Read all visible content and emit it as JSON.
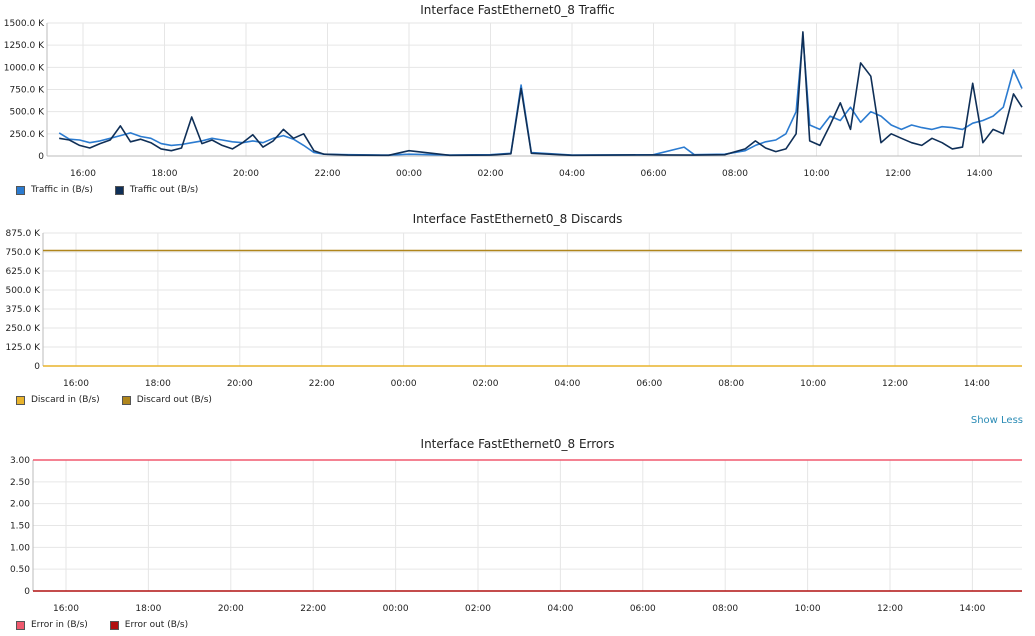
{
  "show_less_label": "Show Less",
  "chart_data": [
    {
      "type": "line",
      "title": "Interface FastEthernet0_8 Traffic",
      "xlabel": "",
      "ylabel": "",
      "x_tick_labels": [
        "16:00",
        "18:00",
        "20:00",
        "22:00",
        "00:00",
        "02:00",
        "04:00",
        "06:00",
        "08:00",
        "10:00",
        "12:00",
        "14:00"
      ],
      "y_tick_labels": [
        "0",
        "250.0 K",
        "500.0 K",
        "750.0 K",
        "1000.0 K",
        "1250.0 K",
        "1500.0 K"
      ],
      "x_range": [
        "15:25",
        "15:05 (+1d)"
      ],
      "ylim": [
        0,
        1500000
      ],
      "grid": true,
      "legend_position": "bottom-left",
      "series": [
        {
          "name": "Traffic in (B/s)",
          "color": "#2b7bd0",
          "points": [
            [
              "15:25",
              260000
            ],
            [
              "15:40",
              190000
            ],
            [
              "15:55",
              180000
            ],
            [
              "16:10",
              150000
            ],
            [
              "16:25",
              170000
            ],
            [
              "16:40",
              200000
            ],
            [
              "16:55",
              230000
            ],
            [
              "17:10",
              260000
            ],
            [
              "17:25",
              220000
            ],
            [
              "17:40",
              200000
            ],
            [
              "17:55",
              140000
            ],
            [
              "18:10",
              120000
            ],
            [
              "18:25",
              130000
            ],
            [
              "18:40",
              150000
            ],
            [
              "18:55",
              170000
            ],
            [
              "19:10",
              200000
            ],
            [
              "19:25",
              180000
            ],
            [
              "19:40",
              160000
            ],
            [
              "19:55",
              150000
            ],
            [
              "20:10",
              170000
            ],
            [
              "20:25",
              150000
            ],
            [
              "20:40",
              200000
            ],
            [
              "20:55",
              230000
            ],
            [
              "21:10",
              190000
            ],
            [
              "21:25",
              120000
            ],
            [
              "21:40",
              40000
            ],
            [
              "21:55",
              20000
            ],
            [
              "22:30",
              15000
            ],
            [
              "23:30",
              10000
            ],
            [
              "00:00",
              20000
            ],
            [
              "01:00",
              10000
            ],
            [
              "02:00",
              15000
            ],
            [
              "02:30",
              30000
            ],
            [
              "02:45",
              800000
            ],
            [
              "03:00",
              40000
            ],
            [
              "04:00",
              10000
            ],
            [
              "05:00",
              12000
            ],
            [
              "06:00",
              15000
            ],
            [
              "06:45",
              100000
            ],
            [
              "07:00",
              15000
            ],
            [
              "07:45",
              20000
            ],
            [
              "08:15",
              60000
            ],
            [
              "08:30",
              120000
            ],
            [
              "08:45",
              160000
            ],
            [
              "09:00",
              180000
            ],
            [
              "09:15",
              250000
            ],
            [
              "09:30",
              500000
            ],
            [
              "09:40",
              1350000
            ],
            [
              "09:50",
              350000
            ],
            [
              "10:05",
              300000
            ],
            [
              "10:20",
              450000
            ],
            [
              "10:35",
              400000
            ],
            [
              "10:50",
              550000
            ],
            [
              "11:05",
              380000
            ],
            [
              "11:20",
              500000
            ],
            [
              "11:35",
              450000
            ],
            [
              "11:50",
              350000
            ],
            [
              "12:05",
              300000
            ],
            [
              "12:20",
              350000
            ],
            [
              "12:35",
              320000
            ],
            [
              "12:50",
              300000
            ],
            [
              "13:05",
              330000
            ],
            [
              "13:20",
              320000
            ],
            [
              "13:35",
              300000
            ],
            [
              "13:50",
              370000
            ],
            [
              "14:05",
              400000
            ],
            [
              "14:20",
              450000
            ],
            [
              "14:35",
              550000
            ],
            [
              "14:50",
              970000
            ],
            [
              "15:05",
              760000
            ]
          ]
        },
        {
          "name": "Traffic out (B/s)",
          "color": "#0f2f57",
          "points": [
            [
              "15:25",
              200000
            ],
            [
              "15:40",
              180000
            ],
            [
              "15:55",
              120000
            ],
            [
              "16:10",
              90000
            ],
            [
              "16:25",
              140000
            ],
            [
              "16:40",
              180000
            ],
            [
              "16:55",
              340000
            ],
            [
              "17:10",
              160000
            ],
            [
              "17:25",
              190000
            ],
            [
              "17:40",
              150000
            ],
            [
              "17:55",
              80000
            ],
            [
              "18:10",
              60000
            ],
            [
              "18:25",
              90000
            ],
            [
              "18:40",
              440000
            ],
            [
              "18:55",
              140000
            ],
            [
              "19:10",
              180000
            ],
            [
              "19:25",
              120000
            ],
            [
              "19:40",
              80000
            ],
            [
              "19:55",
              150000
            ],
            [
              "20:10",
              240000
            ],
            [
              "20:25",
              100000
            ],
            [
              "20:40",
              170000
            ],
            [
              "20:55",
              300000
            ],
            [
              "21:10",
              200000
            ],
            [
              "21:25",
              250000
            ],
            [
              "21:40",
              60000
            ],
            [
              "21:55",
              20000
            ],
            [
              "22:30",
              10000
            ],
            [
              "23:30",
              8000
            ],
            [
              "00:00",
              60000
            ],
            [
              "01:00",
              8000
            ],
            [
              "02:00",
              10000
            ],
            [
              "02:30",
              25000
            ],
            [
              "02:45",
              760000
            ],
            [
              "03:00",
              30000
            ],
            [
              "04:00",
              8000
            ],
            [
              "05:00",
              10000
            ],
            [
              "06:00",
              12000
            ],
            [
              "07:00",
              10000
            ],
            [
              "07:45",
              15000
            ],
            [
              "08:15",
              80000
            ],
            [
              "08:30",
              170000
            ],
            [
              "08:45",
              90000
            ],
            [
              "09:00",
              50000
            ],
            [
              "09:15",
              80000
            ],
            [
              "09:30",
              250000
            ],
            [
              "09:40",
              1400000
            ],
            [
              "09:50",
              170000
            ],
            [
              "10:05",
              120000
            ],
            [
              "10:20",
              350000
            ],
            [
              "10:35",
              600000
            ],
            [
              "10:50",
              300000
            ],
            [
              "11:05",
              1050000
            ],
            [
              "11:20",
              900000
            ],
            [
              "11:35",
              150000
            ],
            [
              "11:50",
              250000
            ],
            [
              "12:05",
              200000
            ],
            [
              "12:20",
              150000
            ],
            [
              "12:35",
              120000
            ],
            [
              "12:50",
              200000
            ],
            [
              "13:05",
              150000
            ],
            [
              "13:20",
              80000
            ],
            [
              "13:35",
              100000
            ],
            [
              "13:50",
              820000
            ],
            [
              "14:05",
              150000
            ],
            [
              "14:20",
              300000
            ],
            [
              "14:35",
              250000
            ],
            [
              "14:50",
              700000
            ],
            [
              "15:05",
              550000
            ]
          ]
        }
      ]
    },
    {
      "type": "line",
      "title": "Interface FastEthernet0_8 Discards",
      "xlabel": "",
      "ylabel": "",
      "x_tick_labels": [
        "16:00",
        "18:00",
        "20:00",
        "22:00",
        "00:00",
        "02:00",
        "04:00",
        "06:00",
        "08:00",
        "10:00",
        "12:00",
        "14:00"
      ],
      "y_tick_labels": [
        "0",
        "125.0 K",
        "250.0 K",
        "375.0 K",
        "500.0 K",
        "625.0 K",
        "750.0 K",
        "875.0 K"
      ],
      "x_range": [
        "15:25",
        "15:05 (+1d)"
      ],
      "ylim": [
        0,
        875000
      ],
      "grid": true,
      "legend_position": "bottom-left",
      "series": [
        {
          "name": "Discard in (B/s)",
          "color": "#e8b32c",
          "points": [
            [
              "15:25",
              0
            ],
            [
              "15:05",
              0
            ]
          ]
        },
        {
          "name": "Discard out (B/s)",
          "color": "#b0861c",
          "points": [
            [
              "15:25",
              760000
            ],
            [
              "15:05",
              760000
            ]
          ]
        }
      ]
    },
    {
      "type": "line",
      "title": "Interface FastEthernet0_8 Errors",
      "xlabel": "",
      "ylabel": "",
      "x_tick_labels": [
        "16:00",
        "18:00",
        "20:00",
        "22:00",
        "00:00",
        "02:00",
        "04:00",
        "06:00",
        "08:00",
        "10:00",
        "12:00",
        "14:00"
      ],
      "y_tick_labels": [
        "0",
        "0.50",
        "1.00",
        "1.50",
        "2.00",
        "2.50",
        "3.00"
      ],
      "x_range": [
        "15:25",
        "15:05 (+1d)"
      ],
      "ylim": [
        0,
        3
      ],
      "grid": true,
      "legend_position": "bottom-left",
      "series": [
        {
          "name": "Error in (B/s)",
          "color": "#f0596e",
          "points": [
            [
              "15:25",
              3
            ],
            [
              "15:05",
              3
            ]
          ]
        },
        {
          "name": "Error out (B/s)",
          "color": "#b01010",
          "points": [
            [
              "15:25",
              0
            ],
            [
              "15:05",
              0
            ]
          ]
        }
      ]
    }
  ]
}
